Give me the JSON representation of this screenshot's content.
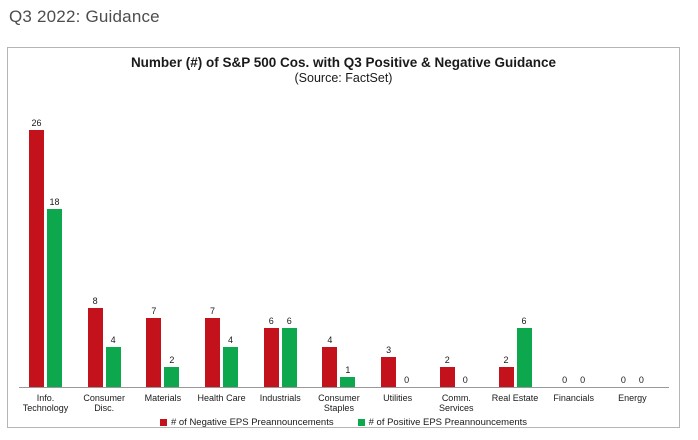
{
  "page": {
    "header": "Q3 2022: Guidance"
  },
  "chart": {
    "title": "Number (#) of S&P 500 Cos. with Q3 Positive & Negative Guidance",
    "subtitle": "(Source: FactSet)"
  },
  "chart_data": {
    "type": "bar",
    "title": "Number (#) of S&P 500 Cos. with Q3 Positive & Negative Guidance",
    "subtitle": "(Source: FactSet)",
    "categories": [
      "Info. Technology",
      "Consumer Disc.",
      "Materials",
      "Health Care",
      "Industrials",
      "Consumer Staples",
      "Utilities",
      "Comm. Services",
      "Real Estate",
      "Financials",
      "Energy"
    ],
    "category_label_lines": [
      [
        "Info.",
        "Technology"
      ],
      [
        "Consumer",
        "Disc."
      ],
      [
        "Materials"
      ],
      [
        "Health Care"
      ],
      [
        "Industrials"
      ],
      [
        "Consumer",
        "Staples"
      ],
      [
        "Utilities"
      ],
      [
        "Comm.",
        "Services"
      ],
      [
        "Real Estate"
      ],
      [
        "Financials"
      ],
      [
        "Energy"
      ]
    ],
    "series": [
      {
        "name": "# of Negative EPS Preannouncements",
        "color": "#c4121d",
        "values": [
          26,
          8,
          7,
          7,
          6,
          4,
          3,
          2,
          2,
          0,
          0
        ]
      },
      {
        "name": "# of Positive EPS Preannouncements",
        "color": "#0da84e",
        "values": [
          18,
          4,
          2,
          4,
          6,
          1,
          0,
          0,
          6,
          0,
          0
        ]
      }
    ],
    "ylim": [
      0,
      27
    ],
    "value_labels": true,
    "grid": false,
    "y_axis_shown": false,
    "legend_position": "bottom"
  }
}
